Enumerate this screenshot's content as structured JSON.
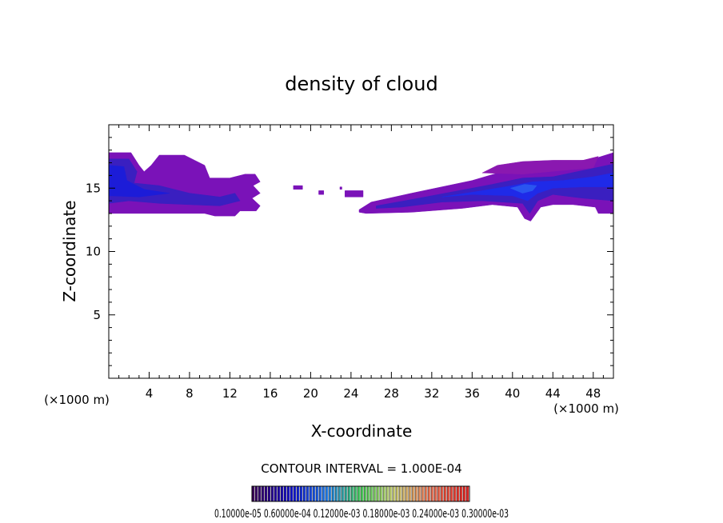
{
  "chart_data": {
    "type": "filled-contour",
    "title": "density of cloud",
    "xlabel": "X-coordinate",
    "ylabel": "Z-coordinate",
    "x_unit_label": "(×1000 m)",
    "x_unit_label_right": "(×1000 m)",
    "xlim": [
      0,
      50
    ],
    "ylim": [
      0,
      20
    ],
    "x_ticks": [
      4,
      8,
      12,
      16,
      20,
      24,
      28,
      32,
      36,
      40,
      44,
      48
    ],
    "x_tick_labels": [
      "4",
      "8",
      "12",
      "16",
      "20",
      "24",
      "28",
      "32",
      "36",
      "40",
      "44",
      "48"
    ],
    "y_ticks": [
      5,
      10,
      15
    ],
    "y_tick_labels": [
      "5",
      "10",
      "15"
    ],
    "x_minor_step": 1,
    "y_minor_step": 1,
    "contour_interval_label": "CONTOUR INTERVAL = 1.000E-04",
    "colorbar_labels": "0.10000e-05 0.60000e-04 0.12000e-03 0.18000e-03 0.24000e-03 0.30000e-03",
    "colorbar_range": [
      1e-06,
      0.0003
    ],
    "regions": [
      {
        "name": "left cloud",
        "color": "#7a12b8",
        "points": [
          [
            0,
            17.8
          ],
          [
            2.2,
            17.8
          ],
          [
            3,
            16.8
          ],
          [
            3.5,
            16.3
          ],
          [
            4.2,
            16.8
          ],
          [
            5,
            17.6
          ],
          [
            7.5,
            17.6
          ],
          [
            8.5,
            17.2
          ],
          [
            9.5,
            16.8
          ],
          [
            10,
            15.8
          ],
          [
            12,
            15.8
          ],
          [
            13.5,
            16.1
          ],
          [
            14.5,
            16.1
          ],
          [
            15,
            15.5
          ],
          [
            14.3,
            15.2
          ],
          [
            15,
            14.6
          ],
          [
            14.2,
            14.2
          ],
          [
            15,
            13.6
          ],
          [
            14.6,
            13.2
          ],
          [
            13,
            13.2
          ],
          [
            12.5,
            12.8
          ],
          [
            10.5,
            12.8
          ],
          [
            9.5,
            13
          ],
          [
            0,
            13
          ]
        ]
      },
      {
        "name": "left core",
        "color": "#3a1fc0",
        "points": [
          [
            0,
            17.3
          ],
          [
            2,
            17.3
          ],
          [
            2.8,
            16.3
          ],
          [
            2.5,
            15.4
          ],
          [
            5,
            15.2
          ],
          [
            8,
            14.6
          ],
          [
            11,
            14.3
          ],
          [
            12.5,
            14.6
          ],
          [
            13,
            14
          ],
          [
            11,
            13.6
          ],
          [
            8,
            13.7
          ],
          [
            5,
            13.8
          ],
          [
            2,
            14.0
          ],
          [
            0,
            13.8
          ]
        ]
      },
      {
        "name": "left inner core",
        "color": "#1c1cd8",
        "points": [
          [
            0,
            16.8
          ],
          [
            1.5,
            16.7
          ],
          [
            1.8,
            15.6
          ],
          [
            3.5,
            14.9
          ],
          [
            6,
            14.6
          ],
          [
            3,
            14.3
          ],
          [
            0,
            14.4
          ]
        ]
      },
      {
        "name": "right cloud",
        "color": "#7a12b8",
        "points": [
          [
            24.8,
            13.3
          ],
          [
            26,
            13.9
          ],
          [
            30,
            14.6
          ],
          [
            36,
            15.6
          ],
          [
            39,
            16.3
          ],
          [
            42,
            16.8
          ],
          [
            45,
            17.0
          ],
          [
            48,
            17.3
          ],
          [
            50,
            17.8
          ],
          [
            50,
            13
          ],
          [
            48.5,
            13
          ],
          [
            48.2,
            13.5
          ],
          [
            46,
            13.7
          ],
          [
            44,
            13.7
          ],
          [
            42.8,
            13.5
          ],
          [
            41.8,
            12.4
          ],
          [
            41.2,
            12.6
          ],
          [
            40.5,
            13.5
          ],
          [
            38,
            13.7
          ],
          [
            35,
            13.4
          ],
          [
            30,
            13.1
          ],
          [
            25.5,
            13
          ],
          [
            24.8,
            13.1
          ]
        ]
      },
      {
        "name": "right upper edge",
        "color": "#8a18b0",
        "points": [
          [
            37,
            16.2
          ],
          [
            38.5,
            16.8
          ],
          [
            41,
            17.1
          ],
          [
            44,
            17.2
          ],
          [
            47,
            17.2
          ],
          [
            48.5,
            17.5
          ],
          [
            48,
            16.6
          ],
          [
            45,
            16.4
          ],
          [
            41,
            16.1
          ]
        ]
      },
      {
        "name": "right core",
        "color": "#3a1fc0",
        "points": [
          [
            26.5,
            13.6
          ],
          [
            30,
            14.1
          ],
          [
            34,
            14.7
          ],
          [
            38,
            15.3
          ],
          [
            41,
            15.8
          ],
          [
            44,
            15.9
          ],
          [
            47,
            16.4
          ],
          [
            50,
            16.9
          ],
          [
            50,
            14
          ],
          [
            47,
            14.2
          ],
          [
            44,
            14.5
          ],
          [
            42.5,
            14.0
          ],
          [
            41.7,
            13.0
          ],
          [
            41,
            13.8
          ],
          [
            37,
            14.0
          ],
          [
            33,
            13.9
          ],
          [
            29,
            13.5
          ],
          [
            26.5,
            13.4
          ]
        ]
      },
      {
        "name": "right inner core",
        "color": "#1f2ae8",
        "points": [
          [
            33,
            14.3
          ],
          [
            37,
            14.8
          ],
          [
            40,
            15.2
          ],
          [
            42,
            15.5
          ],
          [
            45,
            15.6
          ],
          [
            48,
            15.9
          ],
          [
            50,
            16.2
          ],
          [
            50,
            15.1
          ],
          [
            47,
            15.1
          ],
          [
            44,
            15.0
          ],
          [
            42.5,
            14.6
          ],
          [
            41.5,
            14.0
          ],
          [
            40,
            14.4
          ],
          [
            36,
            14.5
          ]
        ]
      },
      {
        "name": "right brightest core",
        "color": "#2a55f0",
        "points": [
          [
            39.8,
            15.0
          ],
          [
            41.2,
            15.3
          ],
          [
            42.4,
            15.2
          ],
          [
            42.0,
            14.8
          ],
          [
            41.0,
            14.6
          ]
        ]
      },
      {
        "name": "patch a",
        "color": "#7a12b8",
        "points": [
          [
            18.3,
            15.2
          ],
          [
            19.2,
            15.2
          ],
          [
            19.2,
            14.9
          ],
          [
            18.3,
            14.9
          ]
        ]
      },
      {
        "name": "patch b",
        "color": "#7a12b8",
        "points": [
          [
            20.8,
            14.8
          ],
          [
            21.3,
            14.8
          ],
          [
            21.3,
            14.5
          ],
          [
            20.8,
            14.5
          ]
        ]
      },
      {
        "name": "patch c",
        "color": "#7a12b8",
        "points": [
          [
            23.4,
            14.8
          ],
          [
            25.2,
            14.8
          ],
          [
            25.2,
            14.3
          ],
          [
            23.4,
            14.3
          ]
        ]
      },
      {
        "name": "patch d",
        "color": "#7a12b8",
        "points": [
          [
            22.9,
            15.1
          ],
          [
            23.1,
            15.1
          ],
          [
            23.1,
            14.9
          ],
          [
            22.9,
            14.9
          ]
        ]
      }
    ]
  }
}
